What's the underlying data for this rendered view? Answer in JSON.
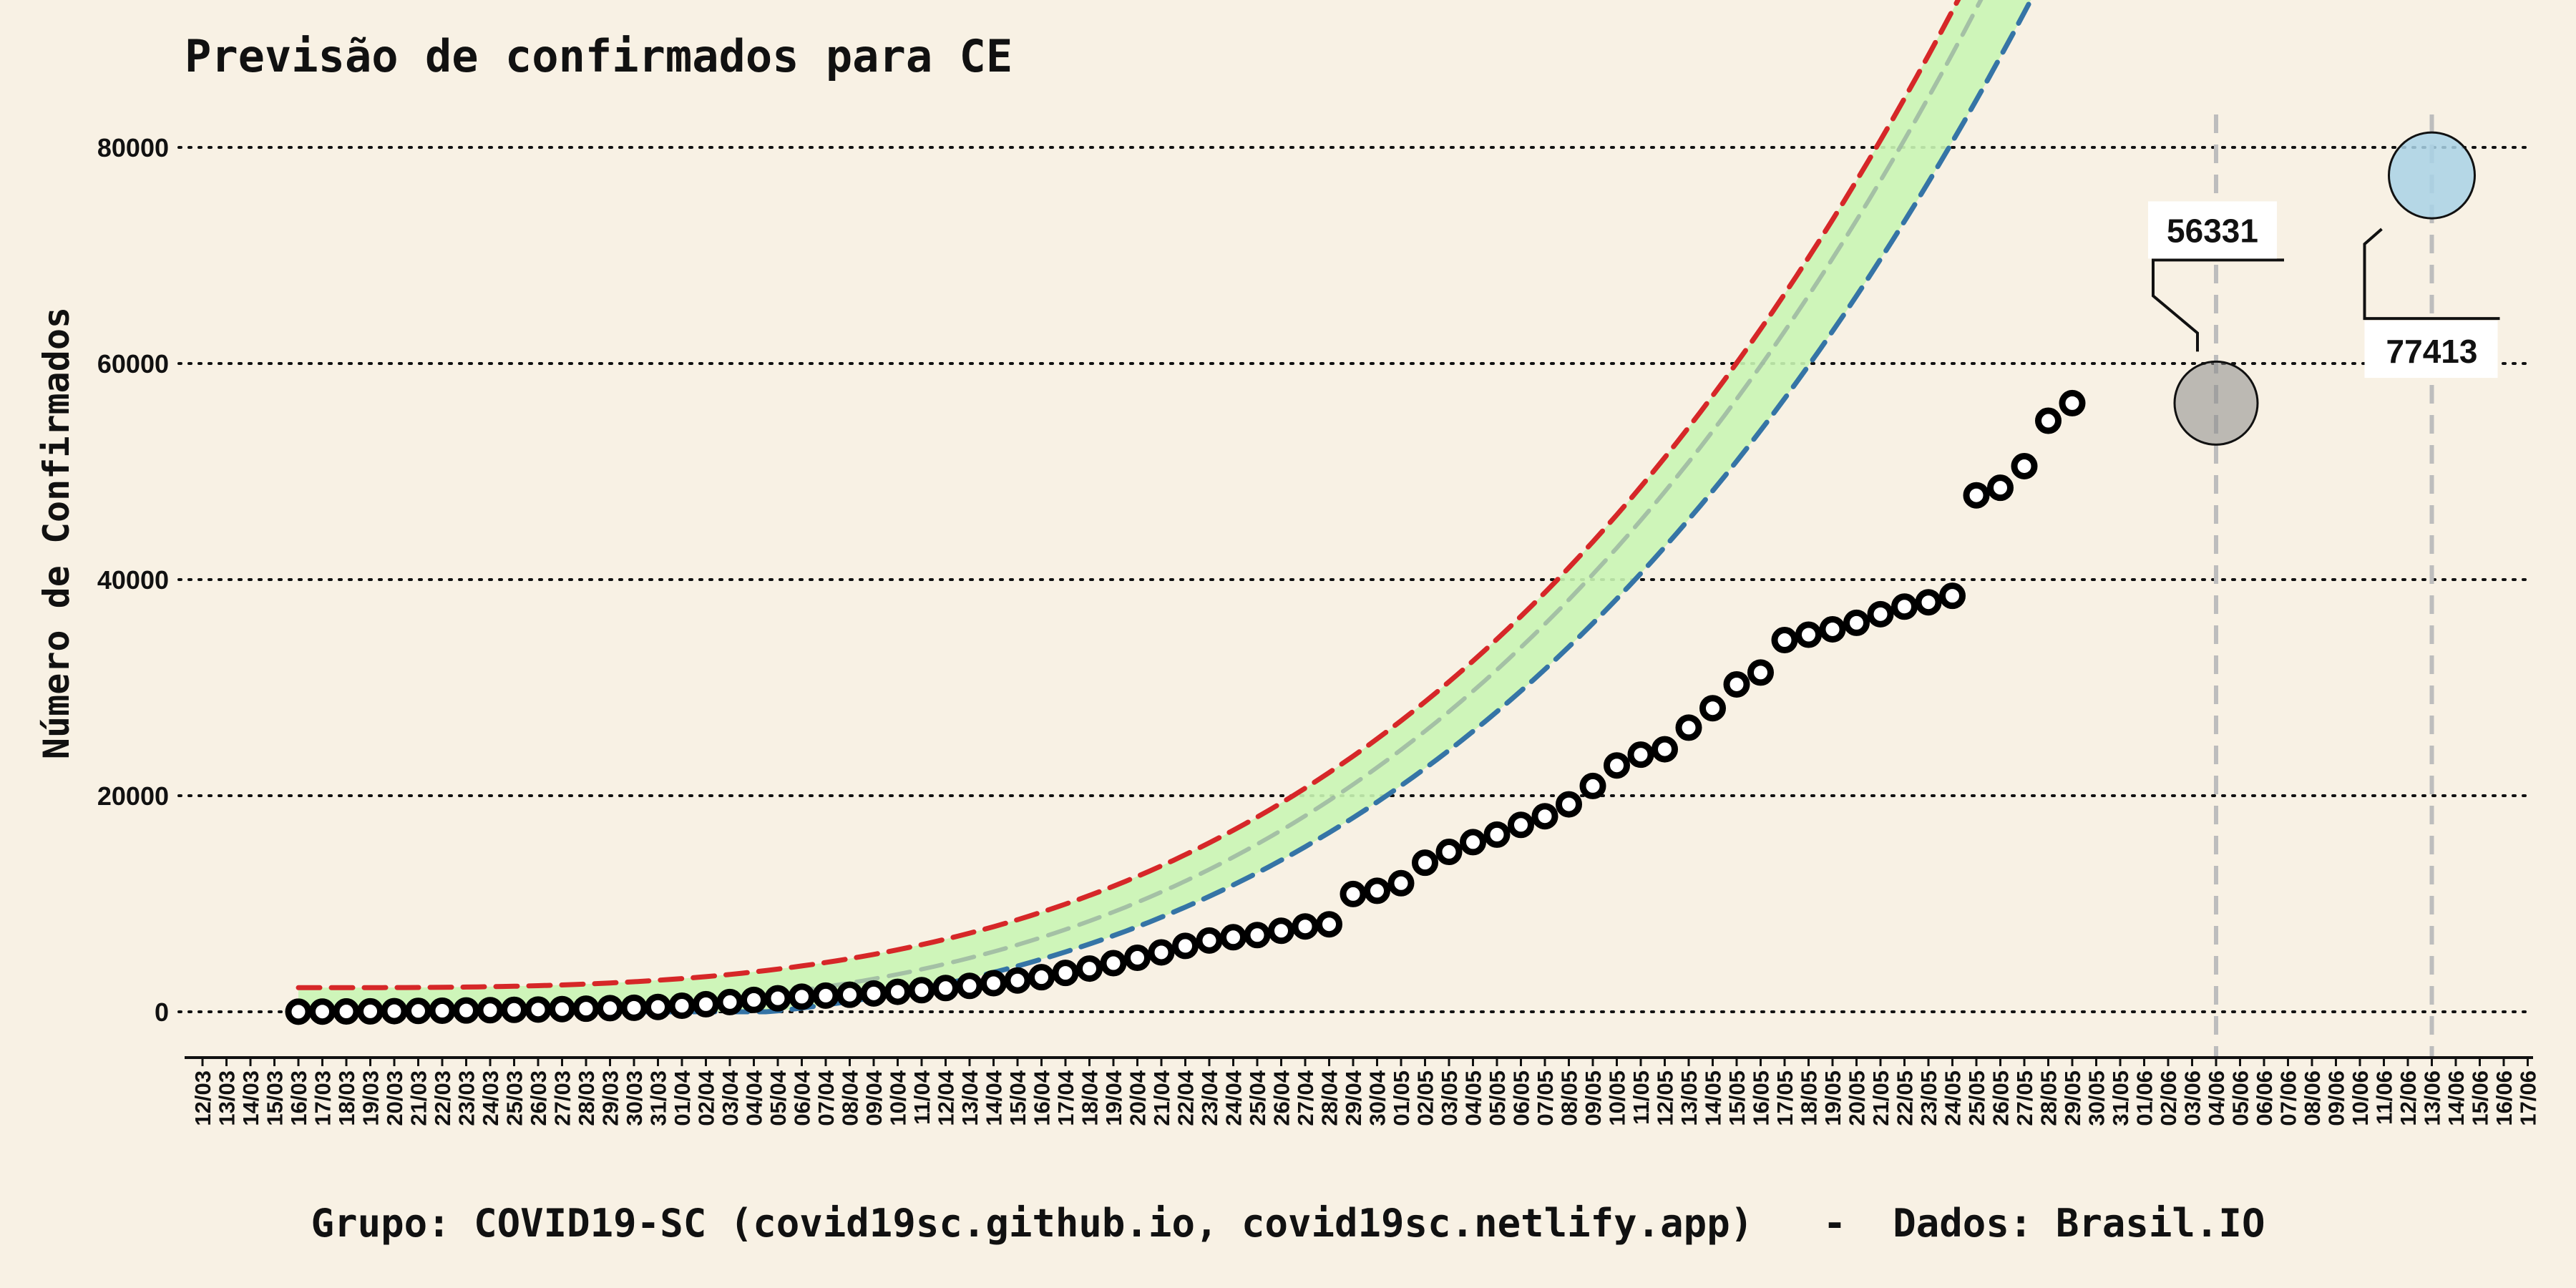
{
  "chart_data": {
    "type": "scatter",
    "title": "Previsão de confirmados para CE",
    "ylabel": "Número de Confirmados",
    "xlabel": "",
    "footer": "Grupo: COVID19-SC (covid19sc.github.io, covid19sc.netlify.app)   -  Dados: Brasil.IO",
    "ylim": [
      -4000,
      85000
    ],
    "yticks": [
      0,
      20000,
      40000,
      60000,
      80000
    ],
    "grid": "horizontal dotted",
    "x_labels": [
      "12/03",
      "13/03",
      "14/03",
      "15/03",
      "16/03",
      "17/03",
      "18/03",
      "19/03",
      "20/03",
      "21/03",
      "22/03",
      "23/03",
      "24/03",
      "25/03",
      "26/03",
      "27/03",
      "28/03",
      "29/03",
      "30/03",
      "31/03",
      "01/04",
      "02/04",
      "03/04",
      "04/04",
      "05/04",
      "06/04",
      "07/04",
      "08/04",
      "09/04",
      "10/04",
      "11/04",
      "12/04",
      "13/04",
      "14/04",
      "15/04",
      "16/04",
      "17/04",
      "18/04",
      "19/04",
      "20/04",
      "21/04",
      "22/04",
      "23/04",
      "24/04",
      "25/04",
      "26/04",
      "27/04",
      "28/04",
      "29/04",
      "30/04",
      "01/05",
      "02/05",
      "03/05",
      "04/05",
      "05/05",
      "06/05",
      "07/05",
      "08/05",
      "09/05",
      "10/05",
      "11/05",
      "12/05",
      "13/05",
      "14/05",
      "15/05",
      "16/05",
      "17/05",
      "18/05",
      "19/05",
      "20/05",
      "21/05",
      "22/05",
      "23/05",
      "24/05",
      "25/05",
      "26/05",
      "27/05",
      "28/05",
      "29/05",
      "30/05",
      "31/05",
      "01/06",
      "02/06",
      "03/06",
      "04/06",
      "05/06",
      "06/06",
      "07/06",
      "08/06",
      "09/06",
      "10/06",
      "11/06",
      "12/06",
      "13/06",
      "14/06",
      "15/06",
      "16/06",
      "17/06"
    ],
    "points_start": "16/03",
    "confirmed": [
      10,
      20,
      30,
      40,
      60,
      80,
      100,
      125,
      150,
      180,
      210,
      250,
      290,
      340,
      372,
      450,
      560,
      700,
      900,
      1100,
      1250,
      1400,
      1500,
      1580,
      1700,
      1850,
      2000,
      2200,
      2400,
      2650,
      2900,
      3200,
      3600,
      4000,
      4500,
      5000,
      5500,
      6100,
      6600,
      6900,
      7100,
      7500,
      7900,
      8100,
      10900,
      11200,
      11900,
      13800,
      14800,
      15700,
      16400,
      17300,
      18100,
      19200,
      20900,
      22800,
      23800,
      24300,
      26300,
      28100,
      30300,
      31400,
      34400,
      34900,
      35400,
      36000,
      36800,
      37500,
      37900,
      38500,
      47800,
      48500,
      50500,
      54700,
      56331
    ],
    "series": [
      {
        "name": "upper",
        "color": "#d62728",
        "start": "16/03",
        "end": "13/06"
      },
      {
        "name": "lower",
        "color": "#3574a6",
        "start": "16/03",
        "end": "13/06"
      },
      {
        "name": "mid",
        "color": "#9ab3a0",
        "start": "16/03",
        "end": "13/06"
      }
    ],
    "band_colors": {
      "fit": "#c9f5b4",
      "forecast": "#7fb6cc"
    },
    "vlines": [
      "04/06",
      "13/06"
    ],
    "annotations": [
      {
        "label": "56331",
        "date": "04/06",
        "value": 56331
      },
      {
        "label": "77413",
        "date": "13/06",
        "value": 77413
      }
    ]
  }
}
